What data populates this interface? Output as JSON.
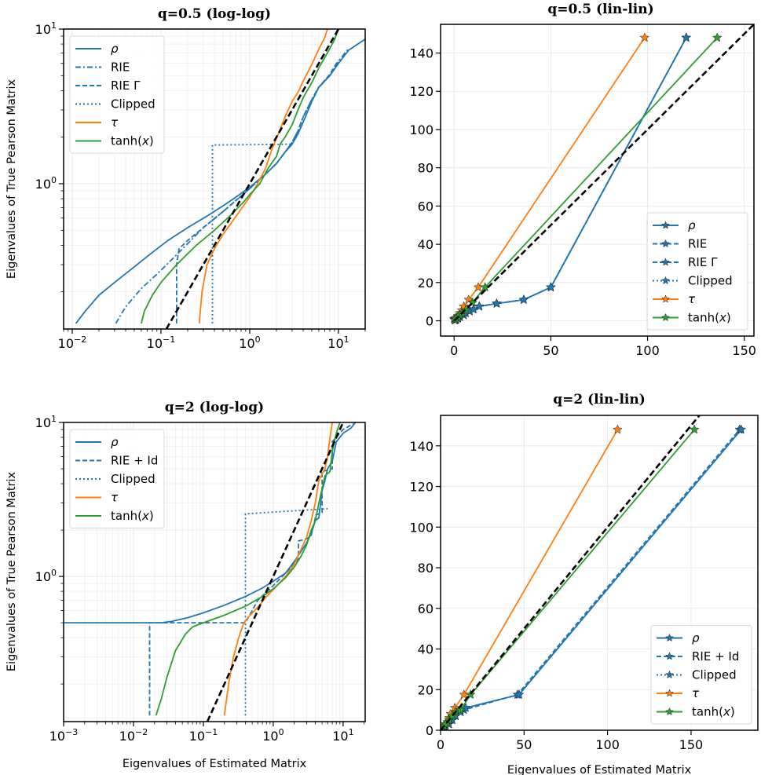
{
  "colors": {
    "blue": "#1f77b4",
    "orange": "#ff7f0e",
    "green": "#2ca02c",
    "identity": "#000000",
    "grid": "#e6e6e6"
  },
  "chart_data": [
    {
      "id": "q05_loglog",
      "type": "line",
      "title": "q=0.5 (log-log)",
      "xlabel": "",
      "ylabel": "Eigenvalues of True Pearson Matrix",
      "xscale": "log",
      "yscale": "log",
      "xlim": [
        0.008,
        20
      ],
      "ylim": [
        0.115,
        10
      ],
      "xticks": [
        {
          "v": 0.01,
          "label": "10^-2"
        },
        {
          "v": 0.1,
          "label": "10^-1"
        },
        {
          "v": 1,
          "label": "10^0"
        },
        {
          "v": 10,
          "label": "10^1"
        }
      ],
      "yticks": [
        {
          "v": 1,
          "label": "10^0"
        },
        {
          "v": 10,
          "label": "10^1"
        }
      ],
      "grid": true,
      "legend_position": "upper-left",
      "identity_line": true,
      "series": [
        {
          "name": "ρ",
          "color": "blue",
          "style": "solid",
          "x": [
            0.011,
            0.014,
            0.02,
            0.03,
            0.05,
            0.08,
            0.12,
            0.2,
            0.35,
            0.5,
            0.7,
            1.0,
            1.5,
            2.0,
            2.5,
            3.0,
            3.5,
            4.0,
            5.0,
            6.0,
            8.0,
            10.0,
            13.0,
            20.0
          ],
          "y": [
            0.125,
            0.15,
            0.19,
            0.23,
            0.29,
            0.36,
            0.43,
            0.52,
            0.63,
            0.72,
            0.82,
            0.95,
            1.15,
            1.35,
            1.6,
            1.8,
            2.1,
            2.5,
            3.4,
            4.2,
            5.0,
            6.0,
            7.3,
            8.6
          ]
        },
        {
          "name": "RIE",
          "color": "blue",
          "style": "dashdot",
          "x": [
            0.031,
            0.04,
            0.06,
            0.09,
            0.13,
            0.2,
            0.3,
            0.5,
            0.7,
            1.0,
            1.5,
            2.0,
            2.5,
            3.0,
            3.5,
            4.0,
            5.0,
            6.0,
            8.0,
            10.0,
            13.0
          ],
          "y": [
            0.125,
            0.16,
            0.21,
            0.26,
            0.32,
            0.41,
            0.52,
            0.66,
            0.78,
            0.93,
            1.15,
            1.35,
            1.6,
            1.85,
            2.2,
            2.7,
            3.5,
            4.2,
            5.0,
            6.2,
            7.5
          ]
        },
        {
          "name": "RIE Γ",
          "color": "blue",
          "style": "dashed",
          "x": [
            0.15,
            0.15,
            0.16,
            0.2,
            0.3,
            0.5,
            0.7,
            1.0,
            1.5,
            2.0,
            2.5,
            3.0,
            3.5,
            4.0,
            5.0,
            6.0,
            8.0,
            10.0
          ],
          "y": [
            0.125,
            0.3,
            0.38,
            0.43,
            0.52,
            0.66,
            0.78,
            0.93,
            1.15,
            1.35,
            1.6,
            1.85,
            2.2,
            2.7,
            3.5,
            4.2,
            5.1,
            6.3
          ]
        },
        {
          "name": "Clipped",
          "color": "blue",
          "style": "dotted",
          "x": [
            0.38,
            0.38,
            3.0
          ],
          "y": [
            0.125,
            1.78,
            1.8
          ]
        },
        {
          "name": "τ",
          "color": "orange",
          "style": "solid",
          "x": [
            0.27,
            0.29,
            0.33,
            0.4,
            0.5,
            0.65,
            0.85,
            1.0,
            1.2,
            1.5,
            1.8,
            2.1,
            2.5,
            3.0,
            3.5,
            4.0,
            5.0,
            6.0,
            7.0,
            7.5
          ],
          "y": [
            0.125,
            0.2,
            0.3,
            0.38,
            0.47,
            0.58,
            0.72,
            0.82,
            0.98,
            1.25,
            1.7,
            2.1,
            2.7,
            3.4,
            3.9,
            4.6,
            5.9,
            7.4,
            8.8,
            10.0
          ]
        },
        {
          "name": "tanh(x)",
          "color": "green",
          "style": "solid",
          "x": [
            0.06,
            0.065,
            0.08,
            0.1,
            0.15,
            0.25,
            0.4,
            0.6,
            0.85,
            1.0,
            1.3,
            1.6,
            2.0,
            2.2,
            2.5,
            3.0,
            3.5,
            4.0,
            5.0,
            6.0,
            7.5,
            9.0,
            10.0
          ],
          "y": [
            0.125,
            0.15,
            0.19,
            0.23,
            0.3,
            0.4,
            0.5,
            0.62,
            0.76,
            0.85,
            1.0,
            1.25,
            1.5,
            1.8,
            2.0,
            2.4,
            3.0,
            3.6,
            4.5,
            5.6,
            7.0,
            8.5,
            10.0
          ]
        }
      ]
    },
    {
      "id": "q05_linlin",
      "type": "line",
      "title": "q=0.5 (lin-lin)",
      "xlabel": "",
      "ylabel": "",
      "xscale": "linear",
      "yscale": "linear",
      "xlim": [
        -7,
        155
      ],
      "ylim": [
        -8,
        155
      ],
      "xticks": [
        {
          "v": 0,
          "label": "0"
        },
        {
          "v": 50,
          "label": "50"
        },
        {
          "v": 100,
          "label": "100"
        },
        {
          "v": 150,
          "label": "150"
        }
      ],
      "yticks": [
        {
          "v": 0,
          "label": "0"
        },
        {
          "v": 20,
          "label": "20"
        },
        {
          "v": 40,
          "label": "40"
        },
        {
          "v": 60,
          "label": "60"
        },
        {
          "v": 80,
          "label": "80"
        },
        {
          "v": 100,
          "label": "100"
        },
        {
          "v": 120,
          "label": "120"
        },
        {
          "v": 140,
          "label": "140"
        }
      ],
      "grid": true,
      "legend_position": "lower-right",
      "identity_line": true,
      "markers": "star",
      "series": [
        {
          "name": "ρ",
          "color": "blue",
          "style": "solid",
          "x": [
            0,
            0.5,
            1,
            2,
            3,
            5,
            6,
            8,
            10,
            13,
            22,
            36,
            50,
            120
          ],
          "y": [
            1,
            0.3,
            0.6,
            1.2,
            2,
            3,
            4,
            5,
            6,
            7.5,
            9,
            11,
            17.5,
            148
          ]
        },
        {
          "name": "RIE",
          "color": "blue",
          "style": "dashed",
          "x": [
            0,
            0.5,
            1,
            2,
            3,
            5,
            6,
            8,
            10,
            13,
            22,
            36,
            50,
            120
          ],
          "y": [
            1,
            0.3,
            0.6,
            1.2,
            2,
            3,
            4,
            5,
            6,
            7.5,
            9,
            11,
            17.5,
            148
          ]
        },
        {
          "name": "RIE Γ",
          "color": "blue",
          "style": "dashed",
          "x": [
            0,
            0.5,
            1,
            2,
            3,
            5,
            6,
            8,
            10,
            13,
            22,
            36,
            50,
            120
          ],
          "y": [
            1,
            0.3,
            0.6,
            1.2,
            2,
            3,
            4,
            5,
            6,
            7.5,
            9,
            11,
            17.5,
            148
          ]
        },
        {
          "name": "Clipped",
          "color": "blue",
          "style": "dotted",
          "x": [
            0,
            0.5,
            1,
            2,
            3,
            5,
            6,
            8,
            10,
            13,
            22,
            36,
            50,
            120
          ],
          "y": [
            1,
            0.3,
            0.6,
            1.2,
            2,
            3,
            4,
            5,
            6,
            7.5,
            9,
            11,
            17.5,
            148
          ]
        },
        {
          "name": "τ",
          "color": "orange",
          "style": "solid",
          "x": [
            0.3,
            1,
            2,
            3,
            4,
            5,
            7.5,
            12.5,
            98.5
          ],
          "y": [
            0.5,
            1.5,
            2.5,
            4,
            5.5,
            7.5,
            11,
            17.5,
            148
          ]
        },
        {
          "name": "tanh(x)",
          "color": "green",
          "style": "solid",
          "x": [
            0.3,
            1,
            2,
            3,
            4,
            6,
            9.5,
            16,
            136
          ],
          "y": [
            0.3,
            1,
            2,
            3,
            4,
            5.5,
            9.5,
            17.5,
            148
          ]
        }
      ]
    },
    {
      "id": "q2_loglog",
      "type": "line",
      "title": "q=2 (log-log)",
      "xlabel": "Eigenvalues of Estimated Matrix",
      "ylabel": "Eigenvalues of True Pearson Matrix",
      "xscale": "log",
      "yscale": "log",
      "xlim": [
        0.001,
        20.7
      ],
      "ylim": [
        0.114,
        10
      ],
      "xticks": [
        {
          "v": 0.001,
          "label": "10^-3"
        },
        {
          "v": 0.01,
          "label": "10^-2"
        },
        {
          "v": 0.1,
          "label": "10^-1"
        },
        {
          "v": 1,
          "label": "10^0"
        },
        {
          "v": 10,
          "label": "10^1"
        }
      ],
      "yticks": [
        {
          "v": 1,
          "label": "10^0"
        },
        {
          "v": 10,
          "label": "10^1"
        }
      ],
      "grid": true,
      "legend_position": "upper-left",
      "identity_line": true,
      "series": [
        {
          "name": "ρ",
          "color": "blue",
          "style": "solid",
          "x": [
            0.001,
            0.025,
            0.035,
            0.06,
            0.1,
            0.2,
            0.4,
            0.7,
            1.0,
            1.5,
            2.0,
            2.5,
            3.0,
            3.5,
            4.0,
            4.5,
            5.0,
            5.5,
            6.0,
            7.0,
            8.0,
            10.0,
            13.0,
            15.0
          ],
          "y": [
            0.5,
            0.5,
            0.51,
            0.54,
            0.58,
            0.65,
            0.74,
            0.84,
            0.93,
            1.05,
            1.25,
            1.45,
            1.65,
            1.9,
            2.3,
            2.4,
            3.6,
            4.2,
            5.0,
            5.6,
            7.5,
            8.5,
            9.2,
            10.0
          ]
        },
        {
          "name": "RIE + Id",
          "color": "blue",
          "style": "dashed",
          "x": [
            0.017,
            0.017,
            0.4,
            0.45,
            0.6,
            1.0,
            1.5,
            2.3,
            2.3,
            3.0,
            3.5,
            4.0,
            4.0,
            5.0,
            5.0,
            7.0,
            7.0,
            10.0,
            14.0
          ],
          "y": [
            0.125,
            0.5,
            0.5,
            0.55,
            0.7,
            0.87,
            1.05,
            1.3,
            1.7,
            1.75,
            1.85,
            2.4,
            2.5,
            2.6,
            4.8,
            5.0,
            7.5,
            9.0,
            9.8
          ]
        },
        {
          "name": "Clipped",
          "color": "blue",
          "style": "dotted",
          "x": [
            0.4,
            0.4,
            6.0
          ],
          "y": [
            0.125,
            2.55,
            2.75
          ]
        },
        {
          "name": "τ",
          "color": "orange",
          "style": "solid",
          "x": [
            0.2,
            0.23,
            0.27,
            0.32,
            0.38,
            0.45,
            0.6,
            0.8,
            1.0,
            1.5,
            2.0,
            2.5,
            3.0,
            3.5,
            4.0,
            4.5,
            5.5,
            6.0,
            6.5,
            7.0
          ],
          "y": [
            0.125,
            0.2,
            0.3,
            0.4,
            0.5,
            0.55,
            0.63,
            0.74,
            0.82,
            1.0,
            1.2,
            1.5,
            1.8,
            2.3,
            3.0,
            4.2,
            5.0,
            6.0,
            8.0,
            10.0
          ]
        },
        {
          "name": "tanh(x)",
          "color": "green",
          "style": "solid",
          "x": [
            0.021,
            0.025,
            0.03,
            0.04,
            0.055,
            0.07,
            0.1,
            0.2,
            0.4,
            0.7,
            1.0,
            1.5,
            2.0,
            2.5,
            3.0,
            3.5,
            4.0,
            4.5,
            5.5,
            6.5,
            7.0,
            8.0,
            9.0
          ],
          "y": [
            0.125,
            0.16,
            0.22,
            0.33,
            0.42,
            0.47,
            0.5,
            0.56,
            0.64,
            0.74,
            0.83,
            0.98,
            1.15,
            1.35,
            1.6,
            2.0,
            2.3,
            3.0,
            4.5,
            4.8,
            6.5,
            8.5,
            10.0
          ]
        }
      ]
    },
    {
      "id": "q2_linlin",
      "type": "line",
      "title": "q=2 (lin-lin)",
      "xlabel": "Eigenvalues of Estimated Matrix",
      "ylabel": "",
      "xscale": "linear",
      "yscale": "linear",
      "xlim": [
        0,
        190
      ],
      "ylim": [
        0,
        155
      ],
      "xticks": [
        {
          "v": 0,
          "label": "0"
        },
        {
          "v": 50,
          "label": "50"
        },
        {
          "v": 100,
          "label": "100"
        },
        {
          "v": 150,
          "label": "150"
        }
      ],
      "yticks": [
        {
          "v": 0,
          "label": "0"
        },
        {
          "v": 20,
          "label": "20"
        },
        {
          "v": 40,
          "label": "40"
        },
        {
          "v": 60,
          "label": "60"
        },
        {
          "v": 80,
          "label": "80"
        },
        {
          "v": 100,
          "label": "100"
        },
        {
          "v": 120,
          "label": "120"
        },
        {
          "v": 140,
          "label": "140"
        }
      ],
      "grid": true,
      "legend_position": "lower-right",
      "identity_line": true,
      "markers": "star",
      "series": [
        {
          "name": "ρ",
          "color": "blue",
          "style": "solid",
          "x": [
            0,
            1,
            2,
            3,
            5,
            7,
            9,
            12,
            15,
            47,
            180
          ],
          "y": [
            0.5,
            0.7,
            1.2,
            2,
            3,
            5,
            7,
            9,
            11,
            17.5,
            148
          ]
        },
        {
          "name": "RIE + Id",
          "color": "blue",
          "style": "dashed",
          "x": [
            0,
            1,
            2,
            3,
            5,
            7,
            9,
            12,
            14,
            46,
            179
          ],
          "y": [
            0.5,
            0.7,
            1.2,
            2,
            3,
            5,
            7,
            9,
            10,
            17.5,
            148
          ]
        },
        {
          "name": "Clipped",
          "color": "blue",
          "style": "dotted",
          "x": [
            0,
            1,
            2,
            3,
            5,
            7,
            9,
            12,
            15,
            47,
            180
          ],
          "y": [
            0.5,
            0.7,
            1.2,
            2,
            3,
            5,
            7,
            9,
            11,
            17.5,
            148
          ]
        },
        {
          "name": "τ",
          "color": "orange",
          "style": "solid",
          "x": [
            0.2,
            1,
            2,
            3,
            4,
            5,
            6,
            8.5,
            14,
            106
          ],
          "y": [
            0.2,
            1,
            2,
            3,
            4,
            6,
            8,
            11,
            17.5,
            148
          ]
        },
        {
          "name": "tanh(x)",
          "color": "green",
          "style": "solid",
          "x": [
            0.3,
            1,
            2,
            3,
            5,
            7,
            9,
            12,
            18,
            152
          ],
          "y": [
            0.3,
            1,
            2,
            3,
            5,
            7,
            9,
            10,
            17.5,
            148
          ]
        }
      ]
    }
  ]
}
